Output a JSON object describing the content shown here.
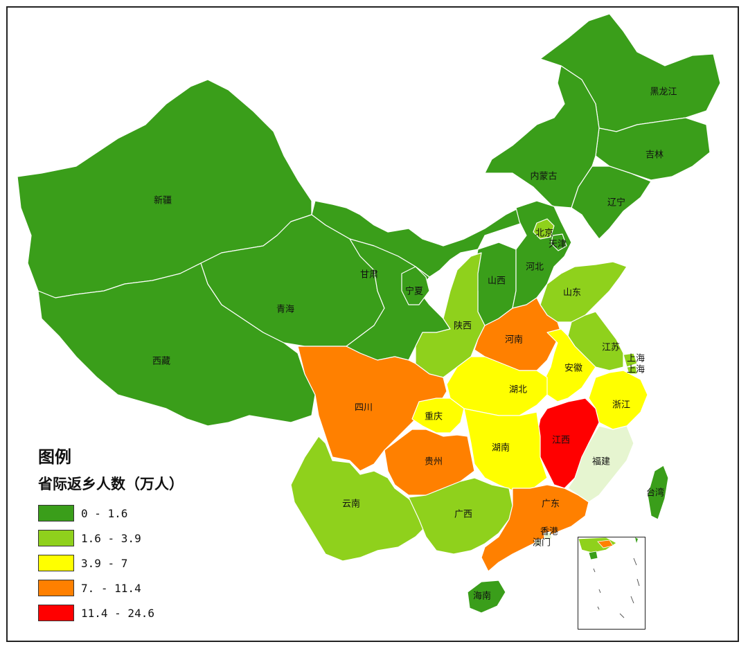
{
  "legend": {
    "title": "图例",
    "subtitle": "省际返乡人数（万人）",
    "classes": [
      {
        "range": "0 - 1.6",
        "color": "#3a9e1a"
      },
      {
        "range": "1.6 - 3.9",
        "color": "#8fd11c"
      },
      {
        "range": "3.9 - 7",
        "color": "#ffff00"
      },
      {
        "range": "7. - 11.4",
        "color": "#ff8000"
      },
      {
        "range": "11.4 - 24.6",
        "color": "#ff0000"
      }
    ]
  },
  "provinces": [
    {
      "name": "黑龙江",
      "class": 0
    },
    {
      "name": "吉林",
      "class": 0
    },
    {
      "name": "辽宁",
      "class": 0
    },
    {
      "name": "内蒙古",
      "class": 0
    },
    {
      "name": "新疆",
      "class": 0
    },
    {
      "name": "西藏",
      "class": 0
    },
    {
      "name": "青海",
      "class": 0
    },
    {
      "name": "甘肃",
      "class": 0
    },
    {
      "name": "宁夏",
      "class": 0
    },
    {
      "name": "山西",
      "class": 0
    },
    {
      "name": "河北",
      "class": 0
    },
    {
      "name": "北京",
      "class": 1
    },
    {
      "name": "天津",
      "class": 0
    },
    {
      "name": "山东",
      "class": 1
    },
    {
      "name": "陕西",
      "class": 1
    },
    {
      "name": "河南",
      "class": 3
    },
    {
      "name": "江苏",
      "class": 1
    },
    {
      "name": "上海",
      "class": 1
    },
    {
      "name": "上海",
      "class": 1
    },
    {
      "name": "安徽",
      "class": 2
    },
    {
      "name": "湖北",
      "class": 2
    },
    {
      "name": "四川",
      "class": 3
    },
    {
      "name": "重庆",
      "class": 2
    },
    {
      "name": "浙江",
      "class": 2
    },
    {
      "name": "江西",
      "class": 4
    },
    {
      "name": "湖南",
      "class": 2
    },
    {
      "name": "贵州",
      "class": 3
    },
    {
      "name": "福建",
      "class": null
    },
    {
      "name": "台湾",
      "class": 0
    },
    {
      "name": "云南",
      "class": 1
    },
    {
      "name": "广西",
      "class": 1
    },
    {
      "name": "广东",
      "class": 3
    },
    {
      "name": "香港",
      "class": null
    },
    {
      "name": "澳门",
      "class": null
    },
    {
      "name": "海南",
      "class": 0
    }
  ],
  "no_data_color": "#e6f5d0"
}
